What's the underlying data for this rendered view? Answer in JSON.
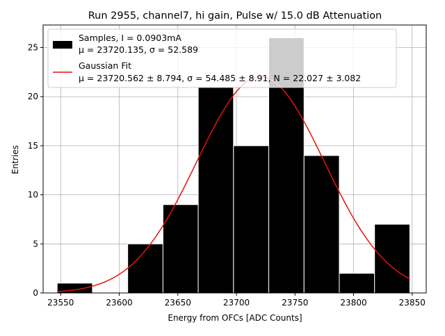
{
  "chart_data": {
    "type": "bar",
    "title": "Run 2955, channel7, hi gain, Pulse w/ 15.0 dB Attenuation",
    "xlabel": "Energy from OFCs [ADC Counts]",
    "ylabel": "Entries",
    "xlim": [
      23535,
      23862
    ],
    "ylim": [
      0,
      27.3
    ],
    "xticks": [
      23550,
      23600,
      23650,
      23700,
      23750,
      23800,
      23850
    ],
    "yticks": [
      0,
      5,
      10,
      15,
      20,
      25
    ],
    "grid": true,
    "legend_position": "top-left",
    "bin_edges": [
      23547.0,
      23577.1,
      23607.2,
      23637.3,
      23667.4,
      23697.5,
      23727.6,
      23757.7,
      23787.8,
      23817.9,
      23848.0
    ],
    "values": [
      1,
      0,
      5,
      9,
      21,
      15,
      26,
      14,
      2,
      7
    ],
    "fit_curve": {
      "type": "gaussian",
      "mu": 23720.562,
      "sigma": 54.485,
      "N": 22.027,
      "x_range": [
        23547,
        23848
      ]
    },
    "series": [
      {
        "name": "Samples, I = 0.0903mA",
        "stats_line": "μ = 23720.135, σ = 52.589",
        "color": "#000000"
      },
      {
        "name": "Gaussian Fit",
        "stats_line": "μ = 23720.562 ± 8.794, σ = 54.485 ± 8.91, N = 22.027 ± 3.082",
        "color": "#e8120c"
      }
    ]
  }
}
